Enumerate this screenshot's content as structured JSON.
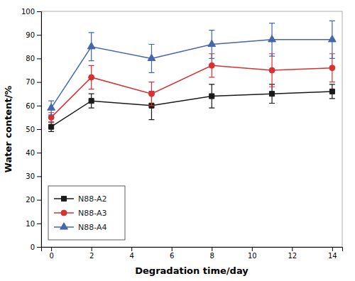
{
  "chart_data": {
    "type": "line",
    "xlabel": "Degradation time/day",
    "ylabel": "Water content/%",
    "x": [
      0,
      2,
      5,
      8,
      11,
      14
    ],
    "series": [
      {
        "name": "N88-A2",
        "color": "#1a1a1a",
        "marker": "square",
        "values": [
          51,
          62,
          60,
          64,
          65,
          66
        ],
        "errors": [
          2,
          3,
          6,
          5,
          4,
          3
        ]
      },
      {
        "name": "N88-A3",
        "color": "#d93030",
        "marker": "circle",
        "values": [
          55,
          72,
          65,
          77,
          75,
          76
        ],
        "errors": [
          2,
          5,
          5,
          5,
          7,
          6
        ]
      },
      {
        "name": "N88-A4",
        "color": "#4466aa",
        "marker": "triangle",
        "values": [
          59,
          85,
          80,
          86,
          88,
          88
        ],
        "errors": [
          3,
          6,
          6,
          6,
          7,
          8
        ]
      }
    ],
    "xlim": [
      -0.5,
      14.5
    ],
    "ylim": [
      0,
      100
    ],
    "xticks": [
      0,
      2,
      4,
      6,
      8,
      10,
      12,
      14
    ],
    "yticks": [
      0,
      10,
      20,
      30,
      40,
      50,
      60,
      70,
      80,
      90,
      100
    ],
    "legend": "lower left",
    "grid": false
  }
}
